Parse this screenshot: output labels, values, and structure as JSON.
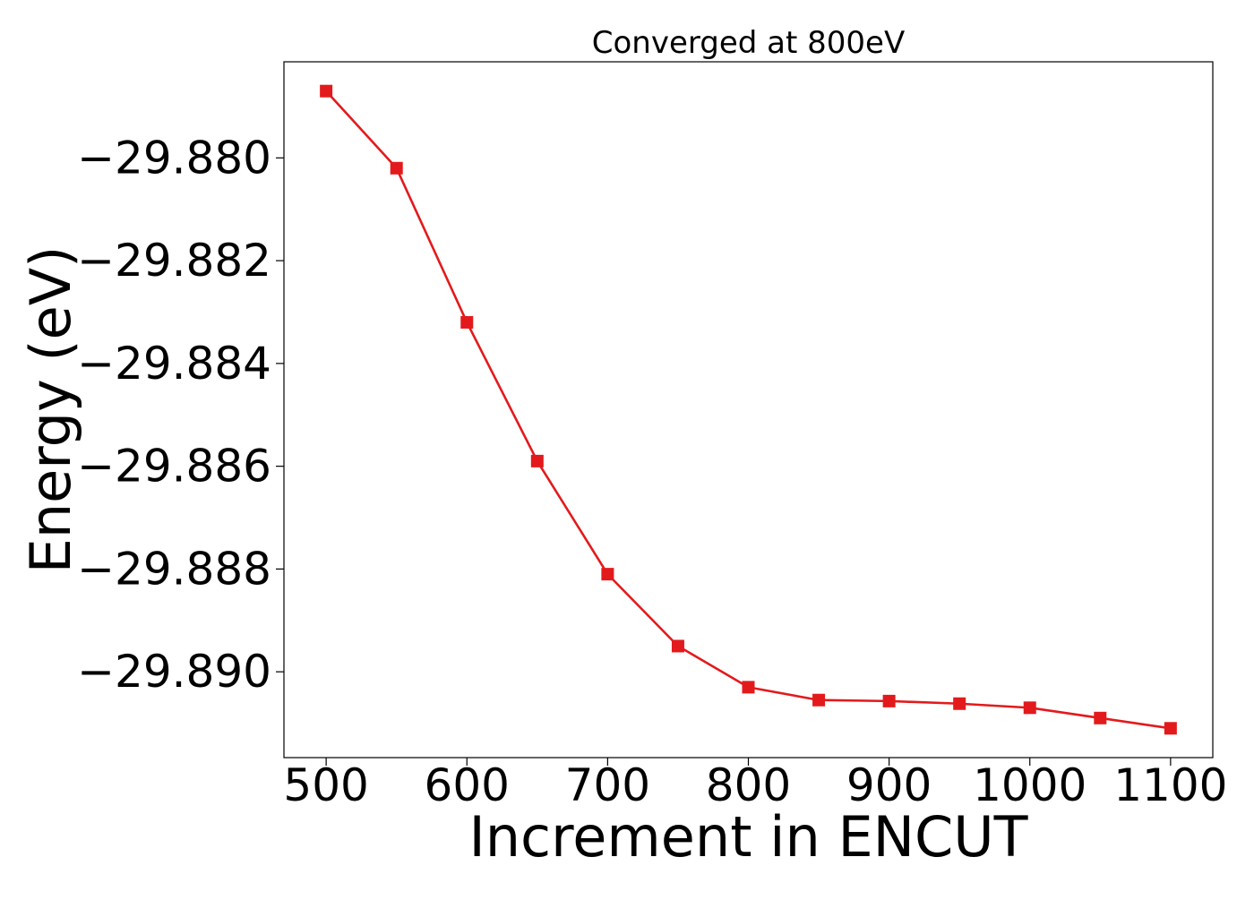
{
  "chart_data": {
    "type": "line",
    "title": "Converged at 800eV",
    "xlabel": "Increment in ENCUT",
    "ylabel": "Energy (eV)",
    "x": [
      500,
      550,
      600,
      650,
      700,
      750,
      800,
      850,
      900,
      950,
      1000,
      1050,
      1100
    ],
    "series": [
      {
        "values": [
          -29.8787,
          -29.8802,
          -29.8832,
          -29.8859,
          -29.8881,
          -29.8895,
          -29.8903,
          -29.89055,
          -29.89057,
          -29.89062,
          -29.8907,
          -29.8909,
          -29.8911
        ],
        "color": "#e31a1c",
        "marker": "square"
      }
    ],
    "xlim": [
      470,
      1130
    ],
    "ylim": [
      -29.89167,
      -29.87813
    ],
    "xticks": [
      500,
      600,
      700,
      800,
      900,
      1000,
      1100
    ],
    "xtick_labels": [
      "500",
      "600",
      "700",
      "800",
      "900",
      "1000",
      "1100"
    ],
    "yticks": [
      -29.88,
      -29.882,
      -29.884,
      -29.886,
      -29.888,
      -29.89
    ],
    "ytick_labels": [
      "−29.880",
      "−29.882",
      "−29.884",
      "−29.886",
      "−29.888",
      "−29.890"
    ],
    "grid": false,
    "legend": "none"
  }
}
